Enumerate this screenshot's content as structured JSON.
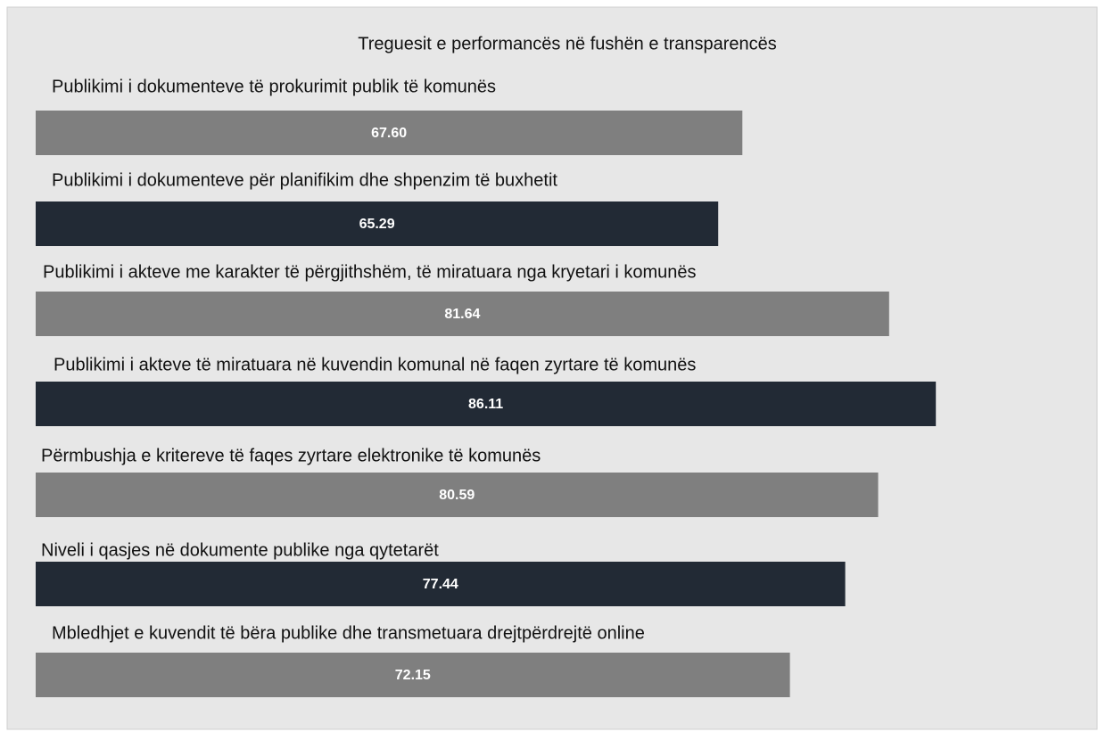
{
  "chart_data": {
    "type": "bar",
    "orientation": "horizontal",
    "title": "Treguesit e performancës në fushën e transparencës",
    "categories": [
      "Publikimi i dokumenteve të prokurimit publik të komunës",
      "Publikimi i dokumenteve për planifikim dhe shpenzim të buxhetit",
      "Publikimi i akteve me karakter të përgjithshëm, të miratuara nga kryetari i komunës",
      "Publikimi i akteve të miratuara në kuvendin komunal në faqen zyrtare të komunës",
      "Përmbushja e kritereve të faqes zyrtare elektronike të komunës",
      "Niveli i qasjes në dokumente publike nga qytetarët",
      "Mbledhjet e kuvendit të bëra publike dhe transmetuara drejtpërdrejtë online"
    ],
    "values": [
      67.6,
      65.29,
      81.64,
      86.11,
      80.59,
      77.44,
      72.15
    ],
    "value_labels": [
      "67.60",
      "65.29",
      "81.64",
      "86.11",
      "80.59",
      "77.44",
      "72.15"
    ],
    "colors": [
      "#7f7f7f",
      "#222a35",
      "#7f7f7f",
      "#222a35",
      "#7f7f7f",
      "#222a35",
      "#7f7f7f"
    ]
  }
}
